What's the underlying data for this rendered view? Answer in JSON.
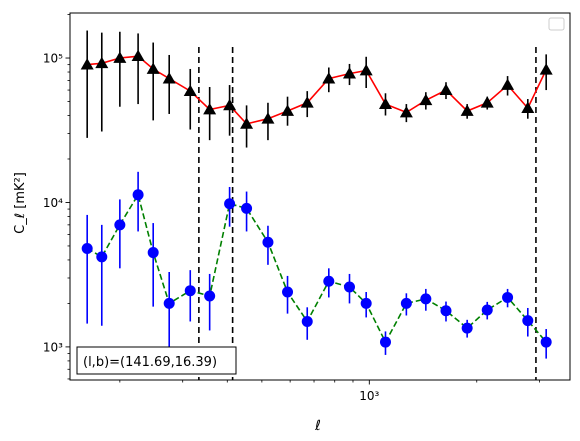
{
  "chart_data": {
    "type": "scatter",
    "xlabel": "ℓ",
    "ylabel": "C_ℓ  [mK²]",
    "xscale": "log",
    "yscale": "log",
    "xlim": [
      145,
      3650
    ],
    "ylim": [
      590,
      205000
    ],
    "x_ticks": [
      {
        "value": 1000,
        "label": "10³"
      }
    ],
    "y_ticks": [
      {
        "value": 1000,
        "label": "10³"
      },
      {
        "value": 10000,
        "label": "10⁴"
      },
      {
        "value": 100000,
        "label": "10⁵"
      }
    ],
    "vlines": [
      333,
      414,
      2930
    ],
    "annotation": "(l,b)=(141.69,16.39)",
    "legend": "top-right",
    "series": [
      {
        "marker": "triangle",
        "marker_color": "#000000",
        "line_color": "#ff0000",
        "line_style": "solid",
        "points": [
          {
            "x": 162,
            "y": 90000,
            "lo": 28000,
            "hi": 155000
          },
          {
            "x": 178,
            "y": 92000,
            "lo": 31000,
            "hi": 150000
          },
          {
            "x": 200,
            "y": 100000,
            "lo": 46000,
            "hi": 152000
          },
          {
            "x": 225,
            "y": 103000,
            "lo": 48000,
            "hi": 148000
          },
          {
            "x": 248,
            "y": 84000,
            "lo": 37000,
            "hi": 128000
          },
          {
            "x": 275,
            "y": 72000,
            "lo": 41000,
            "hi": 105000
          },
          {
            "x": 315,
            "y": 59000,
            "lo": 32000,
            "hi": 84000
          },
          {
            "x": 357,
            "y": 44000,
            "lo": 27000,
            "hi": 63000
          },
          {
            "x": 406,
            "y": 47000,
            "lo": 29000,
            "hi": 65000
          },
          {
            "x": 453,
            "y": 35000,
            "lo": 24000,
            "hi": 47000
          },
          {
            "x": 520,
            "y": 38000,
            "lo": 27000,
            "hi": 49000
          },
          {
            "x": 590,
            "y": 43000,
            "lo": 34000,
            "hi": 54000
          },
          {
            "x": 670,
            "y": 49000,
            "lo": 39000,
            "hi": 59000
          },
          {
            "x": 770,
            "y": 72000,
            "lo": 58000,
            "hi": 86000
          },
          {
            "x": 880,
            "y": 78000,
            "lo": 65000,
            "hi": 91000
          },
          {
            "x": 980,
            "y": 82000,
            "lo": 62000,
            "hi": 102000
          },
          {
            "x": 1110,
            "y": 48000,
            "lo": 40000,
            "hi": 57000
          },
          {
            "x": 1270,
            "y": 42000,
            "lo": 36000,
            "hi": 48000
          },
          {
            "x": 1440,
            "y": 51000,
            "lo": 44000,
            "hi": 58000
          },
          {
            "x": 1640,
            "y": 60000,
            "lo": 52000,
            "hi": 68000
          },
          {
            "x": 1880,
            "y": 43000,
            "lo": 38000,
            "hi": 48000
          },
          {
            "x": 2140,
            "y": 49000,
            "lo": 44000,
            "hi": 54000
          },
          {
            "x": 2440,
            "y": 65000,
            "lo": 55000,
            "hi": 75000
          },
          {
            "x": 2780,
            "y": 45000,
            "lo": 38000,
            "hi": 52000
          },
          {
            "x": 3130,
            "y": 83000,
            "lo": 60000,
            "hi": 106000
          }
        ]
      },
      {
        "marker": "circle",
        "marker_color": "#0000ff",
        "line_color": "#008000",
        "line_style": "dashed",
        "points": [
          {
            "x": 162,
            "y": 4800,
            "lo": 1450,
            "hi": 8200
          },
          {
            "x": 178,
            "y": 4200,
            "lo": 1400,
            "hi": 7000
          },
          {
            "x": 200,
            "y": 7000,
            "lo": 3500,
            "hi": 10500
          },
          {
            "x": 225,
            "y": 11300,
            "lo": 6300,
            "hi": 16300
          },
          {
            "x": 248,
            "y": 4500,
            "lo": 1900,
            "hi": 7200
          },
          {
            "x": 275,
            "y": 2000,
            "lo": 730,
            "hi": 3300
          },
          {
            "x": 315,
            "y": 2450,
            "lo": 1500,
            "hi": 3400
          },
          {
            "x": 357,
            "y": 2250,
            "lo": 1300,
            "hi": 3200
          },
          {
            "x": 406,
            "y": 9800,
            "lo": 6800,
            "hi": 12800
          },
          {
            "x": 453,
            "y": 9100,
            "lo": 6300,
            "hi": 11900
          },
          {
            "x": 520,
            "y": 5300,
            "lo": 3700,
            "hi": 6900
          },
          {
            "x": 590,
            "y": 2400,
            "lo": 1700,
            "hi": 3100
          },
          {
            "x": 670,
            "y": 1500,
            "lo": 1120,
            "hi": 1880
          },
          {
            "x": 770,
            "y": 2850,
            "lo": 2200,
            "hi": 3500
          },
          {
            "x": 880,
            "y": 2600,
            "lo": 2000,
            "hi": 3200
          },
          {
            "x": 980,
            "y": 2000,
            "lo": 1600,
            "hi": 2400
          },
          {
            "x": 1110,
            "y": 1080,
            "lo": 880,
            "hi": 1280
          },
          {
            "x": 1270,
            "y": 2000,
            "lo": 1650,
            "hi": 2350
          },
          {
            "x": 1440,
            "y": 2150,
            "lo": 1780,
            "hi": 2520
          },
          {
            "x": 1640,
            "y": 1780,
            "lo": 1500,
            "hi": 2060
          },
          {
            "x": 1880,
            "y": 1350,
            "lo": 1160,
            "hi": 1540
          },
          {
            "x": 2140,
            "y": 1800,
            "lo": 1550,
            "hi": 2050
          },
          {
            "x": 2440,
            "y": 2200,
            "lo": 1880,
            "hi": 2520
          },
          {
            "x": 2780,
            "y": 1520,
            "lo": 1180,
            "hi": 1860
          },
          {
            "x": 3130,
            "y": 1080,
            "lo": 830,
            "hi": 1330
          }
        ]
      }
    ]
  }
}
